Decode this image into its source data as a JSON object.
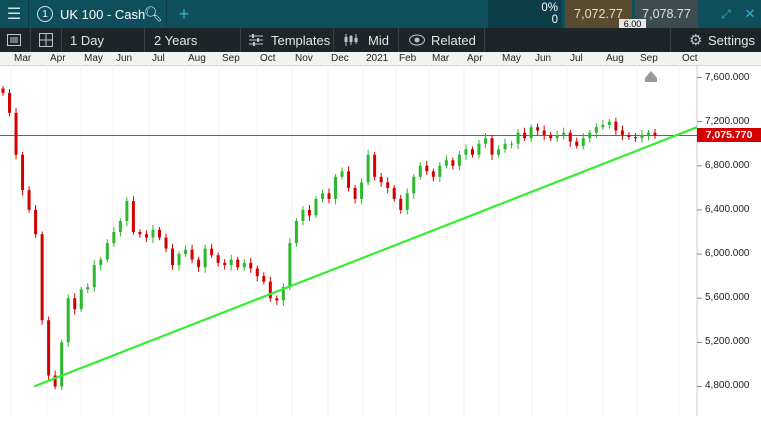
{
  "topbar": {
    "instrument_number": "1",
    "instrument_name": "UK 100 - Cash",
    "change_percent": "0%",
    "change_value": "0",
    "sell_price": "7,072.77",
    "buy_price": "7,078.77",
    "spread": "6.00",
    "icons": [
      "menu-icon",
      "search-icon",
      "plus-icon",
      "expand-icon",
      "close-icon"
    ]
  },
  "toolbar": {
    "interval": "1 Day",
    "range": "2 Years",
    "templates": "Templates",
    "price_mode": "Mid",
    "related": "Related",
    "settings": "Settings"
  },
  "colors": {
    "header_bg": "#0f4f5c",
    "toolbar_bg": "#1d2529",
    "up": "#2db82d",
    "down": "#d40000",
    "trendline": "#33ee33",
    "price_tag": "#d40000"
  },
  "chart_data": {
    "type": "candlestick",
    "x_tick_labels": [
      "Mar",
      "Apr",
      "May",
      "Jun",
      "Jul",
      "Aug",
      "Sep",
      "Oct",
      "Nov",
      "Dec",
      "2021",
      "Feb",
      "Mar",
      "Apr",
      "May",
      "Jun",
      "Jul",
      "Aug",
      "Sep",
      "Oct"
    ],
    "y_tick_labels": [
      "7,600.000",
      "7,200.000",
      "6,800.000",
      "6,400.000",
      "6,000.000",
      "5,600.000",
      "5,200.000",
      "4,800.000"
    ],
    "ylim": [
      4750,
      7650
    ],
    "current_price": "7,075.770",
    "trendline": {
      "from": {
        "x": "2020-03-23",
        "y": 4800
      },
      "to": {
        "x": "2021-10-29",
        "y": 7150
      }
    },
    "series": [
      {
        "values": [
          7460,
          7280,
          6900,
          6580,
          6400,
          6180,
          5400,
          4900,
          4800,
          5200,
          5600,
          5500,
          5680,
          5700,
          5900,
          5950,
          6100,
          6200,
          6300,
          6480,
          6200,
          6180,
          6150,
          6220,
          6150,
          6050,
          5900,
          6000,
          6040,
          5950,
          5880,
          6050,
          5990,
          5920,
          5900,
          5950,
          5880,
          5920,
          5870,
          5800,
          5750,
          5600,
          5580,
          5700,
          6100,
          6300,
          6400,
          6350,
          6500,
          6550,
          6500,
          6700,
          6750,
          6600,
          6500,
          6650,
          6900,
          6700,
          6650,
          6600,
          6500,
          6400,
          6550,
          6700,
          6800,
          6750,
          6700,
          6800,
          6850,
          6800,
          6900,
          6950,
          6900,
          7000,
          7050,
          6900,
          6950,
          7000,
          7000,
          7100,
          7050,
          7150,
          7120,
          7080,
          7050,
          7080,
          7100,
          7020,
          6980,
          7050,
          7100,
          7150,
          7170,
          7200,
          7120,
          7080,
          7060,
          7050,
          7080,
          7100,
          7070
        ]
      }
    ]
  }
}
